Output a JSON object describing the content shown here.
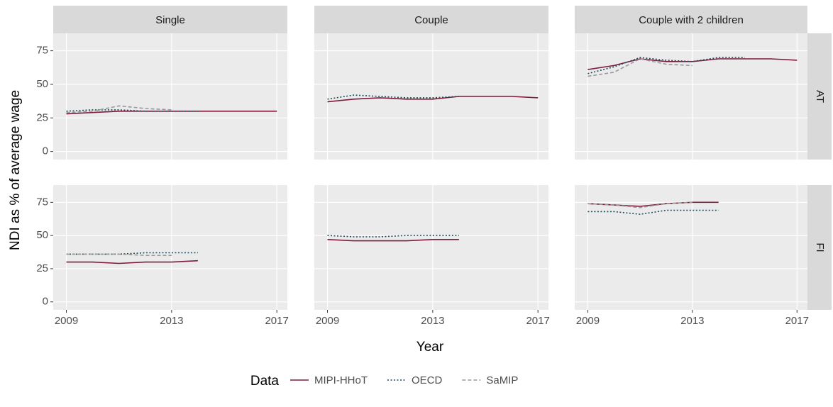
{
  "figure": {
    "xlabel": "Year",
    "ylabel": "NDI as % of average wage",
    "legend_title": "Data",
    "columns": [
      "Single",
      "Couple",
      "Couple with 2 children"
    ],
    "rows": [
      "AT",
      "FI"
    ]
  },
  "chart_data": [
    {
      "type": "line",
      "x": [
        2009,
        2010,
        2011,
        2012,
        2013,
        2014,
        2015,
        2016,
        2017
      ],
      "xlim": [
        2008.5,
        2017.4
      ],
      "xticks": [
        2009,
        2013,
        2017
      ],
      "ylim": [
        -6,
        88
      ],
      "yticks": [
        0,
        25,
        50,
        75
      ],
      "grid": true,
      "series": [
        {
          "name": "MIPI-HHoT",
          "color": "#7f1a3b",
          "dash": "solid",
          "values": [
            28,
            29,
            30,
            30,
            30,
            30,
            30,
            30,
            30
          ]
        },
        {
          "name": "OECD",
          "color": "#1f4e5a",
          "dash": "dotted",
          "values": [
            30,
            31,
            31,
            30,
            30,
            30,
            null,
            null,
            null
          ]
        },
        {
          "name": "SaMIP",
          "color": "#999999",
          "dash": "dashed",
          "values": [
            29,
            30,
            34,
            32,
            31,
            null,
            null,
            null,
            null
          ]
        }
      ]
    },
    {
      "type": "line",
      "x": [
        2009,
        2010,
        2011,
        2012,
        2013,
        2014,
        2015,
        2016,
        2017
      ],
      "xlim": [
        2008.5,
        2017.4
      ],
      "xticks": [
        2009,
        2013,
        2017
      ],
      "ylim": [
        -6,
        88
      ],
      "yticks": [
        0,
        25,
        50,
        75
      ],
      "grid": true,
      "series": [
        {
          "name": "MIPI-HHoT",
          "color": "#7f1a3b",
          "dash": "solid",
          "values": [
            37,
            39,
            40,
            39,
            39,
            41,
            41,
            41,
            40
          ]
        },
        {
          "name": "OECD",
          "color": "#1f4e5a",
          "dash": "dotted",
          "values": [
            39,
            42,
            41,
            40,
            40,
            41,
            null,
            null,
            null
          ]
        },
        {
          "name": "SaMIP",
          "color": "#999999",
          "dash": "dashed",
          "values": [
            null,
            null,
            null,
            null,
            null,
            null,
            null,
            null,
            null
          ]
        }
      ]
    },
    {
      "type": "line",
      "x": [
        2009,
        2010,
        2011,
        2012,
        2013,
        2014,
        2015,
        2016,
        2017
      ],
      "xlim": [
        2008.5,
        2017.4
      ],
      "xticks": [
        2009,
        2013,
        2017
      ],
      "ylim": [
        -6,
        88
      ],
      "yticks": [
        0,
        25,
        50,
        75
      ],
      "grid": true,
      "series": [
        {
          "name": "MIPI-HHoT",
          "color": "#7f1a3b",
          "dash": "solid",
          "values": [
            61,
            64,
            69,
            67,
            67,
            69,
            69,
            69,
            68
          ]
        },
        {
          "name": "OECD",
          "color": "#1f4e5a",
          "dash": "dotted",
          "values": [
            58,
            63,
            70,
            68,
            67,
            70,
            70,
            null,
            null
          ]
        },
        {
          "name": "SaMIP",
          "color": "#999999",
          "dash": "dashed",
          "values": [
            56,
            59,
            69,
            65,
            64,
            null,
            null,
            null,
            null
          ]
        }
      ]
    },
    {
      "type": "line",
      "x": [
        2009,
        2010,
        2011,
        2012,
        2013,
        2014,
        2015,
        2016,
        2017
      ],
      "xlim": [
        2008.5,
        2017.4
      ],
      "xticks": [
        2009,
        2013,
        2017
      ],
      "ylim": [
        -6,
        88
      ],
      "yticks": [
        0,
        25,
        50,
        75
      ],
      "grid": true,
      "series": [
        {
          "name": "MIPI-HHoT",
          "color": "#7f1a3b",
          "dash": "solid",
          "values": [
            30,
            30,
            29,
            30,
            30,
            31,
            null,
            null,
            null
          ]
        },
        {
          "name": "OECD",
          "color": "#1f4e5a",
          "dash": "dotted",
          "values": [
            36,
            36,
            36,
            37,
            37,
            37,
            null,
            null,
            null
          ]
        },
        {
          "name": "SaMIP",
          "color": "#999999",
          "dash": "dashed",
          "values": [
            36,
            36,
            36,
            35,
            35,
            null,
            null,
            null,
            null
          ]
        }
      ]
    },
    {
      "type": "line",
      "x": [
        2009,
        2010,
        2011,
        2012,
        2013,
        2014,
        2015,
        2016,
        2017
      ],
      "xlim": [
        2008.5,
        2017.4
      ],
      "xticks": [
        2009,
        2013,
        2017
      ],
      "ylim": [
        -6,
        88
      ],
      "yticks": [
        0,
        25,
        50,
        75
      ],
      "grid": true,
      "series": [
        {
          "name": "MIPI-HHoT",
          "color": "#7f1a3b",
          "dash": "solid",
          "values": [
            47,
            46,
            46,
            46,
            47,
            47,
            null,
            null,
            null
          ]
        },
        {
          "name": "OECD",
          "color": "#1f4e5a",
          "dash": "dotted",
          "values": [
            50,
            49,
            49,
            50,
            50,
            50,
            null,
            null,
            null
          ]
        },
        {
          "name": "SaMIP",
          "color": "#999999",
          "dash": "dashed",
          "values": [
            null,
            null,
            null,
            null,
            null,
            null,
            null,
            null,
            null
          ]
        }
      ]
    },
    {
      "type": "line",
      "x": [
        2009,
        2010,
        2011,
        2012,
        2013,
        2014,
        2015,
        2016,
        2017
      ],
      "xlim": [
        2008.5,
        2017.4
      ],
      "xticks": [
        2009,
        2013,
        2017
      ],
      "ylim": [
        -6,
        88
      ],
      "yticks": [
        0,
        25,
        50,
        75
      ],
      "grid": true,
      "series": [
        {
          "name": "MIPI-HHoT",
          "color": "#7f1a3b",
          "dash": "solid",
          "values": [
            74,
            73,
            72,
            74,
            75,
            75,
            null,
            null,
            null
          ]
        },
        {
          "name": "OECD",
          "color": "#1f4e5a",
          "dash": "dotted",
          "values": [
            68,
            68,
            66,
            69,
            69,
            69,
            null,
            null,
            null
          ]
        },
        {
          "name": "SaMIP",
          "color": "#999999",
          "dash": "dashed",
          "values": [
            74,
            73,
            71,
            74,
            75,
            null,
            null,
            null,
            null
          ]
        }
      ]
    }
  ]
}
